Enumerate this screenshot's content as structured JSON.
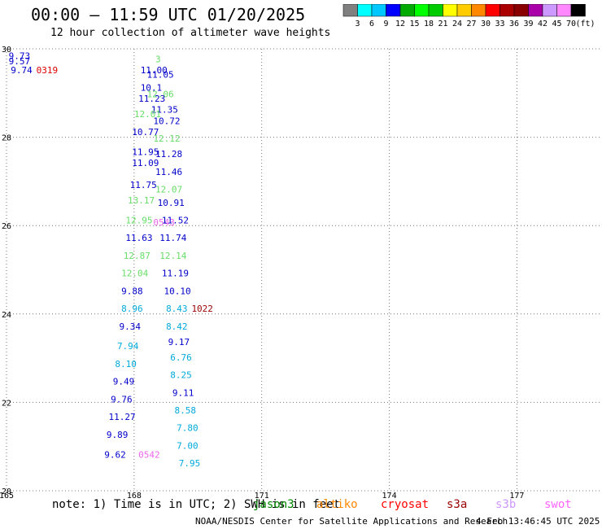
{
  "header": {
    "title": "00:00 — 11:59 UTC 01/20/2025",
    "subtitle": "12 hour collection of altimeter wave heights"
  },
  "colorbar": {
    "colors": [
      "#808080",
      "#00ffff",
      "#00c8ff",
      "#0000ff",
      "#00aa00",
      "#00ff00",
      "#00cc00",
      "#ffff00",
      "#ffcc00",
      "#ff8800",
      "#ff0000",
      "#aa0000",
      "#880000",
      "#aa00aa",
      "#cc99ff",
      "#ff88ff",
      "#000000"
    ],
    "labels": [
      "3",
      "6",
      "9",
      "12",
      "15",
      "18",
      "21",
      "24",
      "27",
      "30",
      "33",
      "36",
      "39",
      "42",
      "45",
      "70",
      "(ft)"
    ]
  },
  "chart_data": {
    "type": "scatter",
    "xlim": [
      165,
      179
    ],
    "ylim": [
      20,
      30
    ],
    "x_ticks": [
      "165",
      "168",
      "171",
      "174",
      "177"
    ],
    "y_ticks": [
      "30",
      "28",
      "26",
      "24",
      "22",
      "20"
    ],
    "grid": true,
    "series": [
      {
        "color": "#cc0000",
        "values": [
          {
            "x": 165.05,
            "y": 29.77,
            "label": "9.73",
            "color": "#0000cc"
          },
          {
            "x": 165.05,
            "y": 29.65,
            "label": "9.57",
            "color": "#0000cc"
          },
          {
            "x": 165.1,
            "y": 29.45,
            "label": "9.74",
            "color": "#0000cc"
          },
          {
            "x": 165.7,
            "y": 29.45,
            "label": "0319",
            "color": "#dd0000"
          }
        ]
      },
      {
        "color": "#000099",
        "values": [
          {
            "x": 168.15,
            "y": 29.45,
            "label": "11.00",
            "color": "#0000cc"
          },
          {
            "x": 168.5,
            "y": 29.7,
            "label": "3",
            "color": "#66dd66"
          },
          {
            "x": 168.3,
            "y": 29.35,
            "label": "11.05",
            "color": "#0000cc"
          },
          {
            "x": 168.15,
            "y": 29.05,
            "label": "10.1",
            "color": "#0000cc"
          },
          {
            "x": 168.3,
            "y": 28.9,
            "label": "12.06",
            "color": "#66dd66"
          },
          {
            "x": 168.1,
            "y": 28.8,
            "label": "11.23",
            "color": "#0000cc"
          },
          {
            "x": 168.4,
            "y": 28.55,
            "label": "11.35",
            "color": "#0000cc"
          },
          {
            "x": 168.0,
            "y": 28.45,
            "label": "12.01",
            "color": "#66dd66"
          },
          {
            "x": 168.45,
            "y": 28.3,
            "label": "10.72",
            "color": "#0000cc"
          },
          {
            "x": 167.95,
            "y": 28.05,
            "label": "10.77",
            "color": "#0000cc"
          },
          {
            "x": 168.45,
            "y": 27.9,
            "label": "12.12",
            "color": "#66dd66"
          },
          {
            "x": 167.95,
            "y": 27.6,
            "label": "11.95",
            "color": "#0000cc"
          },
          {
            "x": 168.5,
            "y": 27.55,
            "label": "11.28",
            "color": "#0000cc"
          },
          {
            "x": 167.95,
            "y": 27.35,
            "label": "11.09",
            "color": "#0000cc"
          },
          {
            "x": 168.5,
            "y": 27.15,
            "label": "11.46",
            "color": "#0000cc"
          },
          {
            "x": 167.9,
            "y": 26.85,
            "label": "11.75",
            "color": "#0000cc"
          },
          {
            "x": 168.5,
            "y": 26.75,
            "label": "12.07",
            "color": "#66dd66"
          },
          {
            "x": 167.85,
            "y": 26.5,
            "label": "13.17",
            "color": "#66dd66"
          },
          {
            "x": 168.55,
            "y": 26.45,
            "label": "10.91",
            "color": "#0000cc"
          },
          {
            "x": 167.8,
            "y": 26.05,
            "label": "12.95",
            "color": "#66dd66"
          },
          {
            "x": 168.45,
            "y": 26.0,
            "label": "0543",
            "color": "#ee66ee"
          },
          {
            "x": 168.65,
            "y": 26.05,
            "label": "11.52",
            "color": "#0000cc"
          },
          {
            "x": 167.8,
            "y": 25.65,
            "label": "11.63",
            "color": "#0000cc"
          },
          {
            "x": 168.6,
            "y": 25.65,
            "label": "11.74",
            "color": "#0000cc"
          },
          {
            "x": 167.75,
            "y": 25.25,
            "label": "12.87",
            "color": "#66dd66"
          },
          {
            "x": 168.6,
            "y": 25.25,
            "label": "12.14",
            "color": "#66dd66"
          },
          {
            "x": 167.7,
            "y": 24.85,
            "label": "12.04",
            "color": "#66dd66"
          },
          {
            "x": 168.65,
            "y": 24.85,
            "label": "11.19",
            "color": "#0000cc"
          },
          {
            "x": 167.7,
            "y": 24.45,
            "label": "9.88",
            "color": "#0000cc"
          },
          {
            "x": 168.7,
            "y": 24.45,
            "label": "10.10",
            "color": "#0000cc"
          },
          {
            "x": 167.7,
            "y": 24.05,
            "label": "8.96",
            "color": "#00aadd"
          },
          {
            "x": 168.75,
            "y": 24.05,
            "label": "8.43",
            "color": "#00aadd"
          },
          {
            "x": 169.35,
            "y": 24.05,
            "label": "1022",
            "color": "#990000"
          },
          {
            "x": 167.65,
            "y": 23.65,
            "label": "9.34",
            "color": "#0000cc"
          },
          {
            "x": 168.75,
            "y": 23.65,
            "label": "8.42",
            "color": "#00aadd"
          },
          {
            "x": 168.8,
            "y": 23.3,
            "label": "9.17",
            "color": "#0000cc"
          },
          {
            "x": 167.6,
            "y": 23.2,
            "label": "7.94",
            "color": "#00aadd"
          },
          {
            "x": 168.85,
            "y": 22.95,
            "label": "6.76",
            "color": "#00aadd"
          },
          {
            "x": 167.55,
            "y": 22.8,
            "label": "8.10",
            "color": "#00aadd"
          },
          {
            "x": 168.85,
            "y": 22.55,
            "label": "8.25",
            "color": "#00aadd"
          },
          {
            "x": 167.5,
            "y": 22.4,
            "label": "9.49",
            "color": "#0000cc"
          },
          {
            "x": 168.9,
            "y": 22.15,
            "label": "9.11",
            "color": "#0000cc"
          },
          {
            "x": 167.45,
            "y": 22.0,
            "label": "9.76",
            "color": "#0000cc"
          },
          {
            "x": 168.95,
            "y": 21.75,
            "label": "8.58",
            "color": "#00aadd"
          },
          {
            "x": 167.4,
            "y": 21.6,
            "label": "11.27",
            "color": "#0000cc"
          },
          {
            "x": 169.0,
            "y": 21.35,
            "label": "7.80",
            "color": "#00aadd"
          },
          {
            "x": 167.35,
            "y": 21.2,
            "label": "9.89",
            "color": "#0000cc"
          },
          {
            "x": 169.0,
            "y": 20.95,
            "label": "7.00",
            "color": "#00aadd"
          },
          {
            "x": 167.3,
            "y": 20.75,
            "label": "9.62",
            "color": "#0000cc"
          },
          {
            "x": 168.1,
            "y": 20.75,
            "label": "0542",
            "color": "#ee66ee"
          },
          {
            "x": 169.05,
            "y": 20.55,
            "label": "7.95",
            "color": "#00aadd"
          }
        ]
      }
    ]
  }
}
